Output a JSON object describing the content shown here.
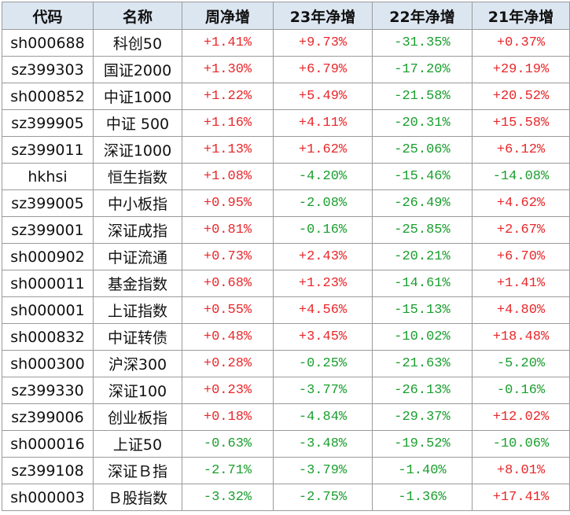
{
  "table": {
    "header": [
      "代码",
      "名称",
      "周净增",
      "23年净增",
      "22年净增",
      "21年净增"
    ],
    "rows": [
      [
        "sh000688",
        "科创50",
        "+1.41%",
        "+9.73%",
        "-31.35%",
        "+0.37%"
      ],
      [
        "sz399303",
        "国证2000",
        "+1.30%",
        "+6.79%",
        "-17.20%",
        "+29.19%"
      ],
      [
        "sh000852",
        "中证1000",
        "+1.22%",
        "+5.49%",
        "-21.58%",
        "+20.52%"
      ],
      [
        "sz399905",
        "中证 500",
        "+1.16%",
        "+4.11%",
        "-20.31%",
        "+15.58%"
      ],
      [
        "sz399011",
        "深证1000",
        "+1.13%",
        "+1.62%",
        "-25.06%",
        "+6.12%"
      ],
      [
        "hkhsi",
        "恒生指数",
        "+1.08%",
        "-4.20%",
        "-15.46%",
        "-14.08%"
      ],
      [
        "sz399005",
        "中小板指",
        "+0.95%",
        "-2.08%",
        "-26.49%",
        "+4.62%"
      ],
      [
        "sz399001",
        "深证成指",
        "+0.81%",
        "-0.16%",
        "-25.85%",
        "+2.67%"
      ],
      [
        "sh000902",
        "中证流通",
        "+0.73%",
        "+2.43%",
        "-20.21%",
        "+6.70%"
      ],
      [
        "sh000011",
        "基金指数",
        "+0.68%",
        "+1.23%",
        "-14.61%",
        "+1.41%"
      ],
      [
        "sh000001",
        "上证指数",
        "+0.55%",
        "+4.56%",
        "-15.13%",
        "+4.80%"
      ],
      [
        "sh000832",
        "中证转债",
        "+0.48%",
        "+3.45%",
        "-10.02%",
        "+18.48%"
      ],
      [
        "sh000300",
        "沪深300",
        "+0.28%",
        "-0.25%",
        "-21.63%",
        "-5.20%"
      ],
      [
        "sz399330",
        "深证100",
        "+0.23%",
        "-3.77%",
        "-26.13%",
        "-0.16%"
      ],
      [
        "sz399006",
        "创业板指",
        "+0.18%",
        "-4.84%",
        "-29.37%",
        "+12.02%"
      ],
      [
        "sh000016",
        "上证50",
        "-0.63%",
        "-3.48%",
        "-19.52%",
        "-10.06%"
      ],
      [
        "sz399108",
        "深证Ｂ指",
        "-2.71%",
        "-3.79%",
        "-1.40%",
        "+8.01%"
      ],
      [
        "sh000003",
        "Ｂ股指数",
        "-3.32%",
        "-2.75%",
        "-1.36%",
        "+17.41%"
      ]
    ]
  }
}
